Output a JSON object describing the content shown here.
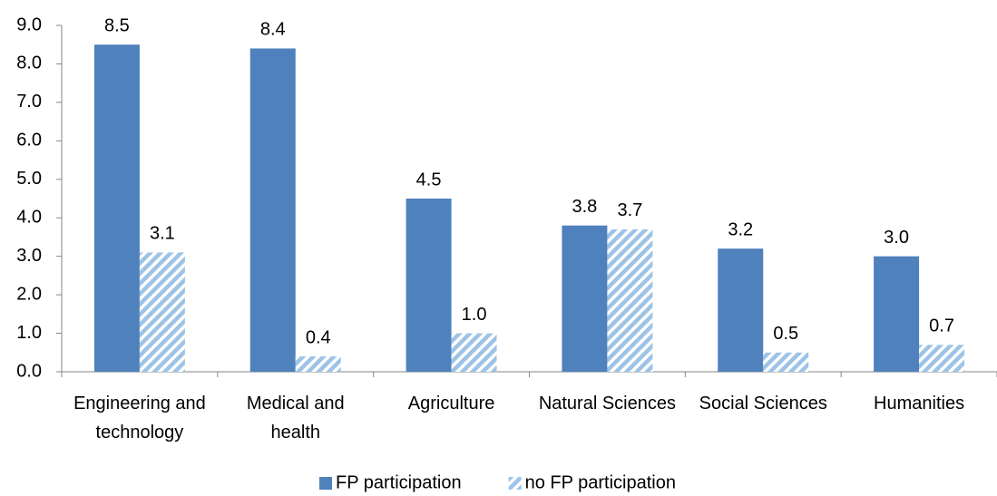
{
  "chart_data": {
    "type": "bar",
    "categories": [
      "Engineering and technology",
      "Medical and health",
      "Agriculture",
      "Natural Sciences",
      "Social Sciences",
      "Humanities"
    ],
    "series": [
      {
        "name": "FP participation",
        "color": "#4f81bd",
        "values": [
          8.5,
          8.4,
          4.5,
          3.8,
          3.2,
          3.0
        ],
        "value_labels": [
          "8.5",
          "8.4",
          "4.5",
          "3.8",
          "3.2",
          "3.0"
        ]
      },
      {
        "name": "no FP participation",
        "color": "#9dc3e6",
        "hatch": true,
        "values": [
          3.1,
          0.4,
          1.0,
          3.7,
          0.5,
          0.7
        ],
        "value_labels": [
          "3.1",
          "0.4",
          "1.0",
          "3.7",
          "0.5",
          "0.7"
        ]
      }
    ],
    "ylim": [
      0,
      9
    ],
    "yticks": [
      {
        "value": 0,
        "label": "0.0"
      },
      {
        "value": 1,
        "label": "1.0"
      },
      {
        "value": 2,
        "label": "2.0"
      },
      {
        "value": 3,
        "label": "3.0"
      },
      {
        "value": 4,
        "label": "4.0"
      },
      {
        "value": 5,
        "label": "5.0"
      },
      {
        "value": 6,
        "label": "6.0"
      },
      {
        "value": 7,
        "label": "7.0"
      },
      {
        "value": 8,
        "label": "8.0"
      },
      {
        "value": 9,
        "label": "9.0"
      }
    ],
    "grid": false,
    "legend": "bottom"
  }
}
